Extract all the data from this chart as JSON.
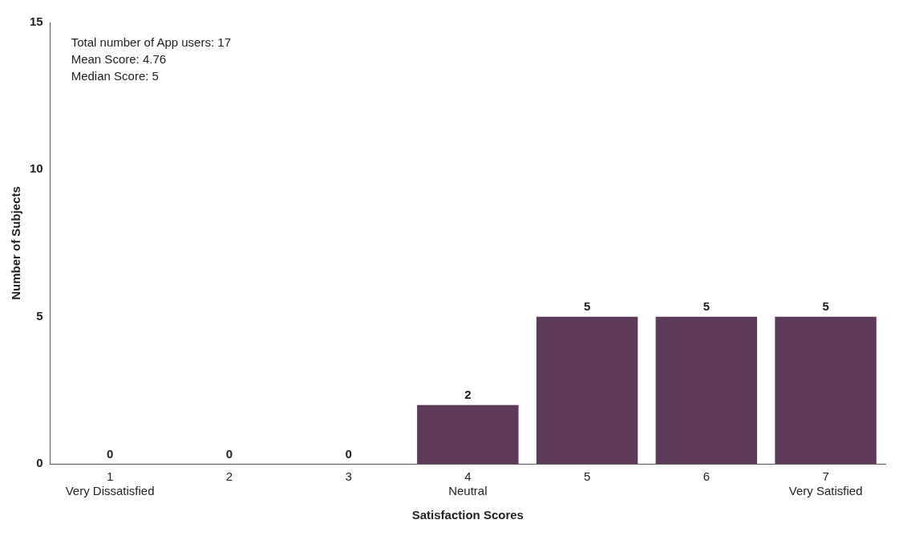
{
  "chart_data": {
    "type": "bar",
    "categories": [
      "1\nVery Dissatisfied",
      "2",
      "3",
      "4\nNeutral",
      "5",
      "6",
      "7\nVery Satisfied"
    ],
    "values": [
      0,
      0,
      0,
      2,
      5,
      5,
      5
    ],
    "color": "#5e3a5a",
    "xlabel": "Satisfaction Scores",
    "ylabel": "Number of Subjects",
    "ylim": [
      0,
      15
    ],
    "yticks": [
      0,
      5,
      10,
      15
    ],
    "grid": false,
    "legend": false,
    "data_labels": true,
    "annotations": [
      "Total number of App users: 17",
      "Mean Score: 4.76",
      "Median Score: 5"
    ]
  }
}
